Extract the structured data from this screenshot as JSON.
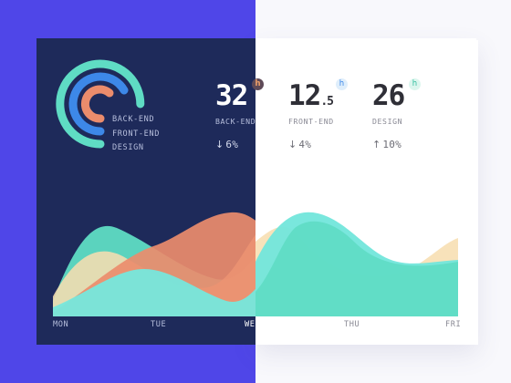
{
  "colors": {
    "page_bg_left": "#4f46e8",
    "card_dark": "#1e2a5a",
    "card_light": "#ffffff",
    "orange": "#eb8c6c",
    "teal": "#5fdcc4",
    "cyan": "#76e7dc",
    "blue": "#3d88e8",
    "peach": "#f6ddb0"
  },
  "legend": {
    "items": [
      "BACK-END",
      "FRONT-END",
      "DESIGN"
    ]
  },
  "metrics": [
    {
      "value": "32",
      "suffix": "",
      "unit": "h",
      "label": "BACK-END",
      "arrow": "down",
      "delta": "6%"
    },
    {
      "value": "12",
      "suffix": ".5",
      "unit": "h",
      "label": "FRONT-END",
      "arrow": "down",
      "delta": "4%"
    },
    {
      "value": "26",
      "suffix": "",
      "unit": "h",
      "label": "DESIGN",
      "arrow": "up",
      "delta": "10%"
    }
  ],
  "xaxis": {
    "days": [
      "MON",
      "TUE",
      "WED",
      "THU",
      "FRI"
    ]
  },
  "icons": {
    "down": "↓",
    "up": "↑"
  }
}
